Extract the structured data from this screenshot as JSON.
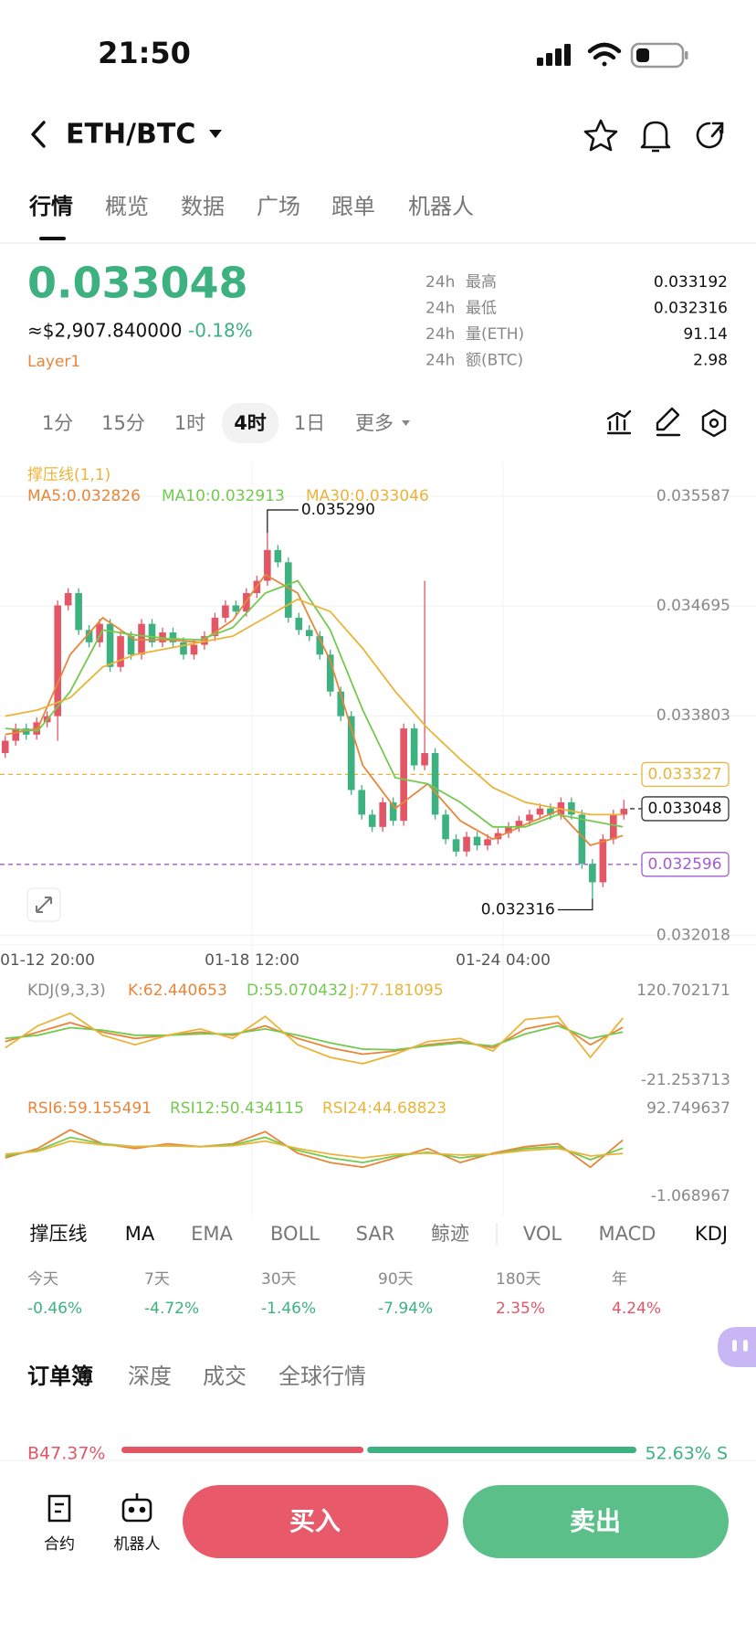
{
  "status": {
    "time": "21:50"
  },
  "header": {
    "pair": "ETH/BTC",
    "tabs": [
      "行情",
      "概览",
      "数据",
      "广场",
      "跟单",
      "机器人"
    ]
  },
  "ticker": {
    "price": "0.033048",
    "usd": "≈$2,907.840000",
    "change": "-0.18%",
    "tag": "Layer1",
    "stats": [
      {
        "period": "24h",
        "label": "最高",
        "value": "0.033192"
      },
      {
        "period": "24h",
        "label": "最低",
        "value": "0.032316"
      },
      {
        "period": "24h",
        "label": "量(ETH)",
        "value": "91.14"
      },
      {
        "period": "24h",
        "label": "额(BTC)",
        "value": "2.98"
      }
    ]
  },
  "timeframes": [
    "1分",
    "15分",
    "1时",
    "4时",
    "1日",
    "更多"
  ],
  "active_timeframe": "4时",
  "chart_data": {
    "type": "candlestick",
    "up_color": "#e35666",
    "down_color": "#3db17f",
    "candles": [
      [
        0.0335,
        0.03364,
        0.03346,
        0.0336
      ],
      [
        0.0336,
        0.03374,
        0.03356,
        0.0337
      ],
      [
        0.0337,
        0.03374,
        0.03361,
        0.03365
      ],
      [
        0.03365,
        0.03379,
        0.03361,
        0.03375
      ],
      [
        0.03375,
        0.03384,
        0.03371,
        0.0338
      ],
      [
        0.0338,
        0.03474,
        0.0336,
        0.0347
      ],
      [
        0.0347,
        0.03484,
        0.03466,
        0.0348
      ],
      [
        0.0348,
        0.03484,
        0.03446,
        0.0345
      ],
      [
        0.0345,
        0.03454,
        0.03436,
        0.0344
      ],
      [
        0.0344,
        0.03459,
        0.03436,
        0.03455
      ],
      [
        0.03455,
        0.03459,
        0.03416,
        0.0342
      ],
      [
        0.0342,
        0.03449,
        0.03416,
        0.03445
      ],
      [
        0.03445,
        0.03449,
        0.03426,
        0.0343
      ],
      [
        0.0343,
        0.03459,
        0.03426,
        0.03455
      ],
      [
        0.03455,
        0.03459,
        0.03436,
        0.0344
      ],
      [
        0.0344,
        0.03452,
        0.03436,
        0.03448
      ],
      [
        0.03448,
        0.03452,
        0.03436,
        0.0344
      ],
      [
        0.0344,
        0.03444,
        0.03426,
        0.0343
      ],
      [
        0.0343,
        0.03442,
        0.03426,
        0.03438
      ],
      [
        0.03438,
        0.03449,
        0.03434,
        0.03445
      ],
      [
        0.03445,
        0.03464,
        0.03441,
        0.0346
      ],
      [
        0.0346,
        0.03474,
        0.03456,
        0.0347
      ],
      [
        0.0347,
        0.03474,
        0.03461,
        0.03465
      ],
      [
        0.03465,
        0.03484,
        0.03461,
        0.0348
      ],
      [
        0.0348,
        0.03494,
        0.03476,
        0.0349
      ],
      [
        0.0349,
        0.03529,
        0.03486,
        0.03515
      ],
      [
        0.03515,
        0.03519,
        0.03501,
        0.03505
      ],
      [
        0.03505,
        0.03509,
        0.03456,
        0.0346
      ],
      [
        0.0346,
        0.03464,
        0.03446,
        0.0345
      ],
      [
        0.0345,
        0.03454,
        0.03441,
        0.03445
      ],
      [
        0.03445,
        0.03449,
        0.03426,
        0.0343
      ],
      [
        0.0343,
        0.03434,
        0.03396,
        0.034
      ],
      [
        0.034,
        0.03404,
        0.03376,
        0.0338
      ],
      [
        0.0338,
        0.03384,
        0.03316,
        0.0332
      ],
      [
        0.0332,
        0.03324,
        0.03296,
        0.033
      ],
      [
        0.033,
        0.03304,
        0.03286,
        0.0329
      ],
      [
        0.0329,
        0.03314,
        0.03286,
        0.0331
      ],
      [
        0.0331,
        0.03314,
        0.03291,
        0.03295
      ],
      [
        0.03295,
        0.03374,
        0.03291,
        0.0337
      ],
      [
        0.0337,
        0.03374,
        0.03336,
        0.0334
      ],
      [
        0.0334,
        0.0349,
        0.03336,
        0.0335
      ],
      [
        0.0335,
        0.03354,
        0.03296,
        0.033
      ],
      [
        0.033,
        0.03304,
        0.03276,
        0.0328
      ],
      [
        0.0328,
        0.03284,
        0.03266,
        0.0327
      ],
      [
        0.0327,
        0.03286,
        0.03266,
        0.03282
      ],
      [
        0.03282,
        0.03286,
        0.03271,
        0.03275
      ],
      [
        0.03275,
        0.03284,
        0.03271,
        0.0328
      ],
      [
        0.0328,
        0.03289,
        0.03276,
        0.03285
      ],
      [
        0.03285,
        0.03294,
        0.03281,
        0.0329
      ],
      [
        0.0329,
        0.03299,
        0.03286,
        0.03295
      ],
      [
        0.03295,
        0.03304,
        0.03291,
        0.033
      ],
      [
        0.033,
        0.03309,
        0.03296,
        0.03305
      ],
      [
        0.03305,
        0.03309,
        0.03296,
        0.033
      ],
      [
        0.033,
        0.03314,
        0.03296,
        0.0331
      ],
      [
        0.0331,
        0.03314,
        0.03296,
        0.033
      ],
      [
        0.033,
        0.03304,
        0.03256,
        0.0326
      ],
      [
        0.0326,
        0.03264,
        0.032316,
        0.03245
      ],
      [
        0.03245,
        0.03284,
        0.03241,
        0.0328
      ],
      [
        0.0328,
        0.03304,
        0.03276,
        0.033
      ],
      [
        0.033,
        0.03312,
        0.03296,
        0.033048
      ]
    ],
    "ylim": [
      0.031941,
      0.035869
    ],
    "yticks": [
      0.035587,
      0.034695,
      0.033803,
      0.032018
    ],
    "xlabels": [
      "01-12 20:00",
      "01-18 12:00",
      "01-24 04:00"
    ],
    "overlay_label": "撑压线(1,1)",
    "series": [
      {
        "name": "MA5:0.032826",
        "color": "#e8863a",
        "values": [
          0.03365,
          0.0337,
          0.0343,
          0.0346,
          0.03442,
          0.03442,
          0.0344,
          0.03458,
          0.03495,
          0.0348,
          0.03425,
          0.0334,
          0.03305,
          0.03325,
          0.03295,
          0.0328,
          0.03292,
          0.03303,
          0.03275,
          0.03283
        ]
      },
      {
        "name": "MA10:0.032913",
        "color": "#74c94f",
        "values": [
          0.0337,
          0.03368,
          0.034,
          0.0345,
          0.03446,
          0.03443,
          0.03442,
          0.03452,
          0.0348,
          0.0349,
          0.0345,
          0.03385,
          0.0333,
          0.03325,
          0.0331,
          0.0329,
          0.0329,
          0.033,
          0.03295,
          0.0329
        ]
      },
      {
        "name": "MA30:0.033046",
        "color": "#e9b43a",
        "values": [
          0.0338,
          0.03385,
          0.03395,
          0.0342,
          0.0343,
          0.03435,
          0.0344,
          0.03445,
          0.0346,
          0.03475,
          0.03465,
          0.03435,
          0.034,
          0.0337,
          0.03345,
          0.03322,
          0.0331,
          0.03305,
          0.033,
          0.033
        ]
      }
    ],
    "hlines": [
      {
        "value": 0.033327,
        "color": "#e9b43a"
      },
      {
        "value": 0.033048,
        "color": "#333333",
        "current": true
      },
      {
        "value": 0.032596,
        "color": "#a05cd6"
      }
    ],
    "annotations": [
      {
        "value": 0.03529,
        "label": "0.035290"
      },
      {
        "value": 0.032316
      }
    ],
    "kdj": {
      "label": "KDJ(9,3,3)",
      "ylim": [
        -21.253713,
        120.702171
      ],
      "yticks": [
        120.702171,
        -21.253713
      ],
      "series": [
        {
          "name": "K:62.440653",
          "color": "#e8863a",
          "values": [
            40,
            55,
            70,
            55,
            45,
            50,
            55,
            50,
            65,
            45,
            30,
            20,
            25,
            35,
            40,
            30,
            60,
            70,
            35,
            62.44
          ]
        },
        {
          "name": "D:55.070432",
          "color": "#74c94f",
          "values": [
            45,
            50,
            62,
            58,
            50,
            50,
            52,
            52,
            60,
            50,
            38,
            28,
            27,
            33,
            38,
            33,
            52,
            65,
            45,
            55.07
          ]
        },
        {
          "name": "J:77.181095",
          "color": "#e9b43a",
          "values": [
            30,
            65,
            85,
            50,
            35,
            50,
            60,
            45,
            80,
            35,
            15,
            5,
            20,
            40,
            45,
            25,
            75,
            80,
            15,
            77.18
          ]
        }
      ]
    },
    "rsi": {
      "ylim": [
        -1.068967,
        92.749637
      ],
      "yticks": [
        92.749637,
        -1.068967
      ],
      "series": [
        {
          "name": "RSI6:59.155491",
          "color": "#e8863a",
          "values": [
            40,
            50,
            70,
            55,
            50,
            55,
            52,
            55,
            68,
            45,
            35,
            30,
            40,
            50,
            35,
            45,
            52,
            55,
            30,
            59.16
          ]
        },
        {
          "name": "RSI12:50.434115",
          "color": "#74c94f",
          "values": [
            42,
            48,
            62,
            55,
            52,
            53,
            52,
            54,
            62,
            48,
            40,
            35,
            42,
            46,
            40,
            44,
            50,
            52,
            38,
            50.43
          ]
        },
        {
          "name": "RSI24:44.68823",
          "color": "#e9b43a",
          "values": [
            44,
            47,
            58,
            54,
            52,
            53,
            52,
            53,
            58,
            50,
            44,
            40,
            44,
            45,
            43,
            44,
            48,
            50,
            42,
            44.69
          ]
        }
      ]
    }
  },
  "indicators": [
    "撑压线",
    "MA",
    "EMA",
    "BOLL",
    "SAR",
    "鲸迹",
    "VOL",
    "MACD",
    "KDJ"
  ],
  "active_indicators": [
    "撑压线",
    "MA",
    "KDJ"
  ],
  "performance": [
    {
      "label": "今天",
      "value": -0.46,
      "value_label": "-0.46%"
    },
    {
      "label": "7天",
      "value": -4.72,
      "value_label": "-4.72%"
    },
    {
      "label": "30天",
      "value": -1.46,
      "value_label": "-1.46%"
    },
    {
      "label": "90天",
      "value": -7.94,
      "value_label": "-7.94%"
    },
    {
      "label": "180天",
      "value": 2.35,
      "value_label": "2.35%"
    },
    {
      "label": "年",
      "value": 4.24,
      "value_label": "4.24%"
    }
  ],
  "book_tabs": [
    "订单簿",
    "深度",
    "成交",
    "全球行情"
  ],
  "ratio": {
    "buy": {
      "value": 47.37,
      "label": "B47.37%"
    },
    "sell": {
      "value": 52.63,
      "label": "52.63% S"
    }
  },
  "bottom": {
    "contract": "合约",
    "robot": "机器人",
    "buy": "买入",
    "sell": "卖出"
  }
}
